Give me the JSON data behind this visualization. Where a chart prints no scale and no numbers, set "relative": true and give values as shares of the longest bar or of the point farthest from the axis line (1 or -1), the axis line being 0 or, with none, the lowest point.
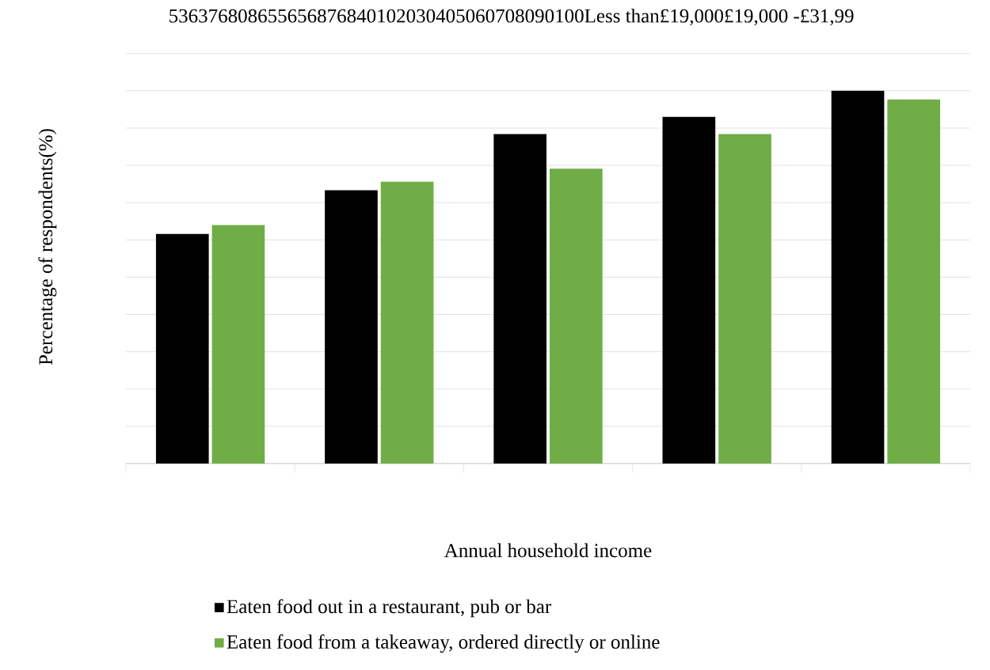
{
  "chart_data": {
    "type": "bar",
    "xlabel": "Annual household income",
    "ylabel": "Percentage of respondents(%)",
    "categories": [
      null,
      null,
      null,
      null,
      null
    ],
    "series": [
      {
        "name": "Eaten food out in a restaurant, pub or bar",
        "color": "#000000",
        "values": [
          0.616,
          0.733,
          0.884,
          0.93,
          1
        ]
      },
      {
        "name": "Eaten food from a takeaway, ordered directly or online",
        "color": "#70ad47",
        "values": [
          0.64,
          0.756,
          0.791,
          0.884,
          0.977
        ]
      }
    ],
    "relative": true,
    "grid": "y",
    "legend": "bottom",
    "annotations": [
      "536376808655656876840102030405060708090100Less than£19,000£19,000 -£31,99"
    ]
  }
}
